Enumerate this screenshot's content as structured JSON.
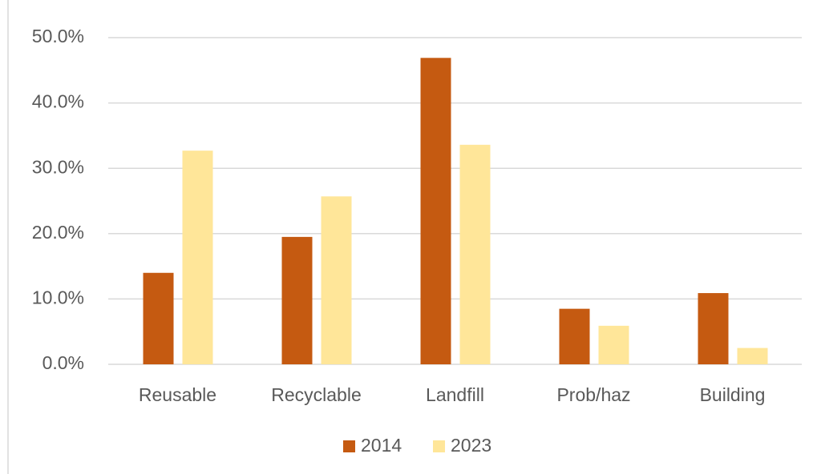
{
  "chart_data": {
    "type": "bar",
    "categories": [
      "Reusable",
      "Recyclable",
      "Landfill",
      "Prob/haz",
      "Building"
    ],
    "series": [
      {
        "name": "2014",
        "color": "#c55a11",
        "values": [
          14.0,
          19.5,
          46.9,
          8.5,
          10.9
        ]
      },
      {
        "name": "2023",
        "color": "#ffe699",
        "values": [
          32.7,
          25.7,
          33.6,
          5.9,
          2.5
        ]
      }
    ],
    "ylim": [
      0,
      50
    ],
    "yticks": [
      {
        "value": 0,
        "label": "0.0%"
      },
      {
        "value": 10,
        "label": "10.0%"
      },
      {
        "value": 20,
        "label": "20.0%"
      },
      {
        "value": 30,
        "label": "30.0%"
      },
      {
        "value": 40,
        "label": "40.0%"
      },
      {
        "value": 50,
        "label": "50.0%"
      }
    ],
    "grid": true,
    "legend": "bottom"
  }
}
